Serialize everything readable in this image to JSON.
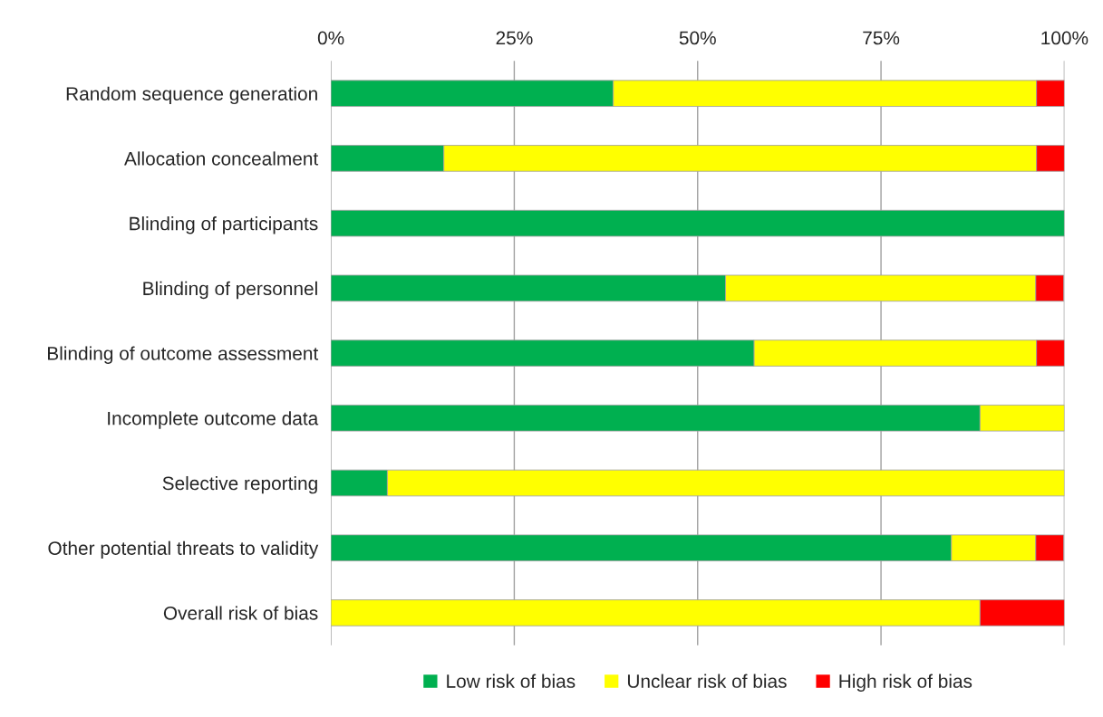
{
  "chart_data": {
    "type": "bar",
    "orientation": "horizontal",
    "stacked": true,
    "categories": [
      "Random sequence generation",
      "Allocation concealment",
      "Blinding of participants",
      "Blinding of personnel",
      "Blinding of outcome assessment",
      "Incomplete outcome data",
      "Selective reporting",
      "Other potential threats to validity",
      "Overall risk of bias"
    ],
    "series": [
      {
        "name": "Low risk of bias",
        "color": "#00b050",
        "values": [
          38.5,
          15.4,
          100,
          53.8,
          57.7,
          88.5,
          7.7,
          84.6,
          0
        ]
      },
      {
        "name": "Unclear risk of bias",
        "color": "#ffff00",
        "values": [
          57.7,
          80.8,
          0,
          42.3,
          38.5,
          11.5,
          92.3,
          11.5,
          88.5
        ]
      },
      {
        "name": "High risk of bias",
        "color": "#ff0000",
        "values": [
          3.8,
          3.8,
          0,
          3.8,
          3.8,
          0,
          0,
          3.8,
          11.5
        ]
      }
    ],
    "xlim": [
      0,
      100
    ],
    "xticks": [
      {
        "value": 0,
        "label": "0%"
      },
      {
        "value": 25,
        "label": "25%"
      },
      {
        "value": 50,
        "label": "50%"
      },
      {
        "value": 75,
        "label": "75%"
      },
      {
        "value": 100,
        "label": "100%"
      }
    ],
    "grid": "x",
    "legend": "bottom"
  }
}
